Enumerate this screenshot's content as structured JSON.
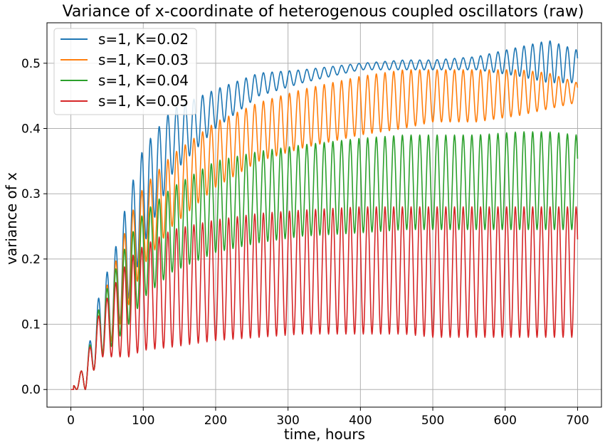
{
  "chart_data": {
    "type": "line",
    "title": "Variance of x-coordinate of heterogenous coupled oscillators (raw)",
    "xlabel": "time, hours",
    "ylabel": "variance of x",
    "xlim": [
      -33,
      733
    ],
    "ylim": [
      -0.027,
      0.562
    ],
    "xticks": [
      0,
      100,
      200,
      300,
      400,
      500,
      600,
      700
    ],
    "yticks": [
      0.0,
      0.1,
      0.2,
      0.3,
      0.4,
      0.5
    ],
    "xtick_labels": [
      "0",
      "100",
      "200",
      "300",
      "400",
      "500",
      "600",
      "700"
    ],
    "ytick_labels": [
      "0.0",
      "0.1",
      "0.2",
      "0.3",
      "0.4",
      "0.5"
    ],
    "grid": true,
    "legend_position": "top-left",
    "oscillation_period_hours": 12,
    "series": [
      {
        "name": "s=1, K=0.02",
        "color": "#1f77b4",
        "envelope_t": [
          0,
          20,
          40,
          60,
          80,
          100,
          140,
          200,
          260,
          320,
          400,
          460,
          500,
          560,
          620,
          660,
          700
        ],
        "upper": [
          0.0,
          0.04,
          0.15,
          0.21,
          0.3,
          0.37,
          0.43,
          0.46,
          0.485,
          0.49,
          0.5,
          0.505,
          0.505,
          0.51,
          0.525,
          0.535,
          0.52
        ],
        "lower": [
          0.0,
          0.0,
          0.05,
          0.08,
          0.14,
          0.22,
          0.33,
          0.4,
          0.45,
          0.47,
          0.49,
          0.49,
          0.49,
          0.49,
          0.48,
          0.47,
          0.47
        ]
      },
      {
        "name": "s=1, K=0.03",
        "color": "#ff7f0e",
        "envelope_t": [
          0,
          20,
          40,
          60,
          80,
          100,
          140,
          200,
          260,
          320,
          400,
          460,
          500,
          560,
          620,
          660,
          700
        ],
        "upper": [
          0.0,
          0.04,
          0.13,
          0.19,
          0.26,
          0.31,
          0.36,
          0.41,
          0.44,
          0.46,
          0.48,
          0.49,
          0.49,
          0.49,
          0.49,
          0.485,
          0.47
        ],
        "lower": [
          0.0,
          0.0,
          0.05,
          0.08,
          0.13,
          0.19,
          0.25,
          0.31,
          0.35,
          0.37,
          0.39,
          0.4,
          0.41,
          0.41,
          0.42,
          0.43,
          0.44
        ]
      },
      {
        "name": "s=1, K=0.04",
        "color": "#2ca02c",
        "envelope_t": [
          0,
          20,
          40,
          60,
          80,
          100,
          140,
          200,
          260,
          320,
          400,
          460,
          500,
          560,
          620,
          660,
          700
        ],
        "upper": [
          0.0,
          0.04,
          0.13,
          0.18,
          0.23,
          0.27,
          0.31,
          0.35,
          0.365,
          0.375,
          0.385,
          0.39,
          0.39,
          0.39,
          0.395,
          0.395,
          0.39
        ],
        "lower": [
          0.0,
          0.0,
          0.05,
          0.07,
          0.1,
          0.14,
          0.18,
          0.21,
          0.225,
          0.235,
          0.24,
          0.245,
          0.245,
          0.245,
          0.245,
          0.245,
          0.245
        ]
      },
      {
        "name": "s=1, K=0.05",
        "color": "#d62728",
        "envelope_t": [
          0,
          20,
          40,
          60,
          80,
          100,
          140,
          200,
          260,
          320,
          400,
          460,
          500,
          560,
          620,
          660,
          700
        ],
        "upper": [
          0.0,
          0.04,
          0.12,
          0.16,
          0.2,
          0.22,
          0.245,
          0.26,
          0.27,
          0.275,
          0.28,
          0.28,
          0.28,
          0.28,
          0.28,
          0.28,
          0.28
        ],
        "lower": [
          0.0,
          0.0,
          0.05,
          0.05,
          0.05,
          0.06,
          0.065,
          0.075,
          0.08,
          0.085,
          0.085,
          0.085,
          0.08,
          0.08,
          0.08,
          0.08,
          0.08
        ]
      }
    ]
  }
}
